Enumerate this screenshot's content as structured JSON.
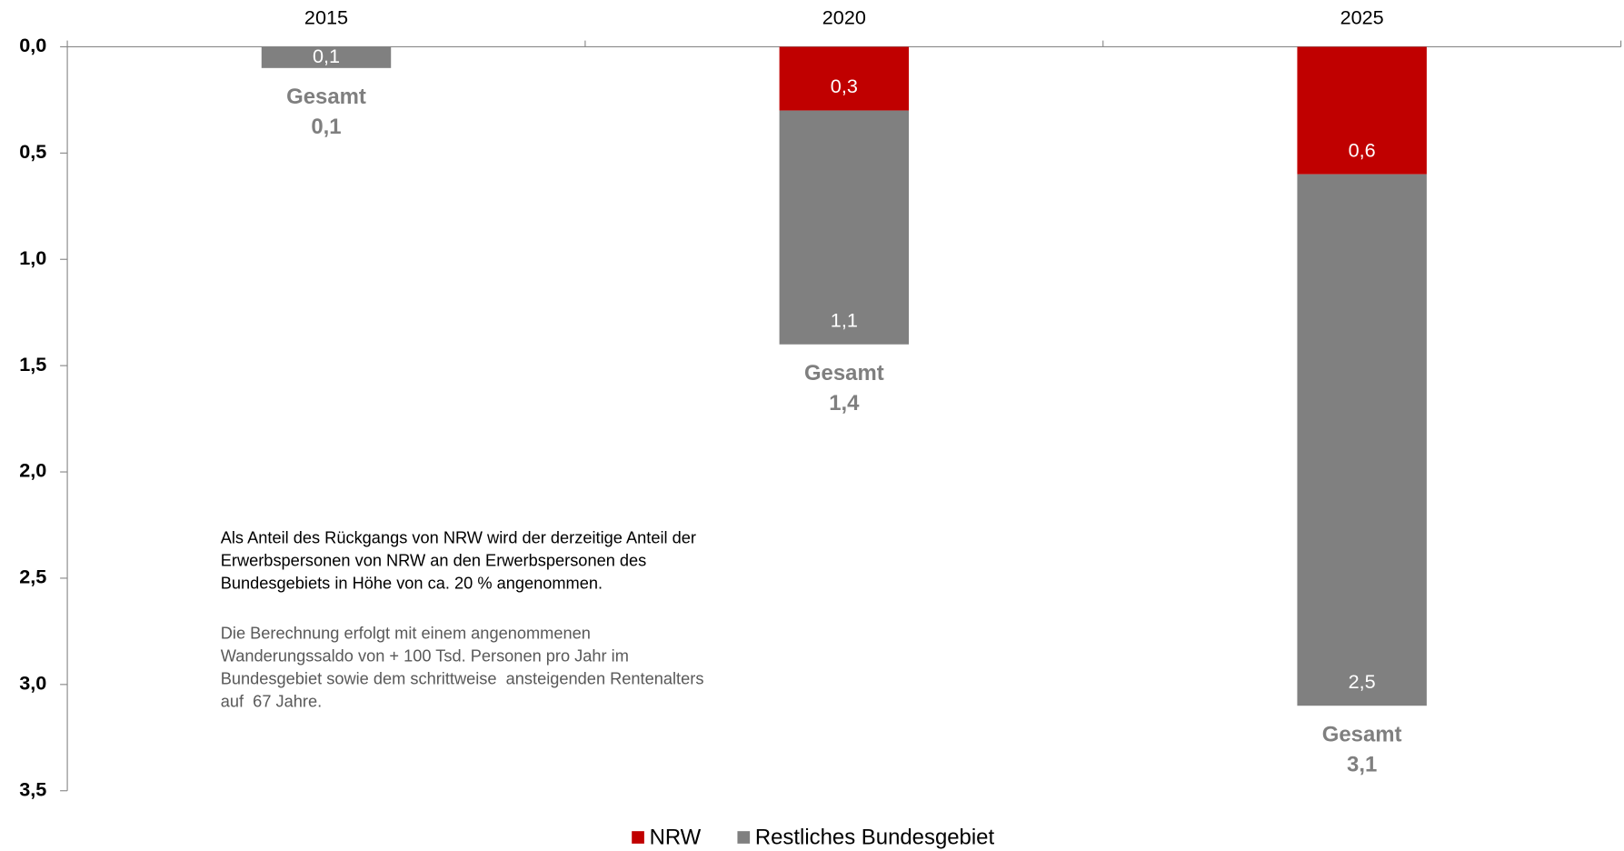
{
  "chart_data": {
    "type": "stacked_bar",
    "categories": [
      "2015",
      "2020",
      "2025"
    ],
    "series": [
      {
        "name": "NRW",
        "color": "#c00000",
        "values": [
          0,
          0.3,
          0.6
        ],
        "value_labels": [
          null,
          "0,3",
          "0,6"
        ]
      },
      {
        "name": "Restliches Bundesgebiet",
        "color": "#808080",
        "values": [
          0.1,
          1.1,
          2.5
        ],
        "value_labels": [
          "0,1",
          "1,1",
          "2,5"
        ]
      }
    ],
    "totals": {
      "label": "Gesamt",
      "values": [
        0.1,
        1.4,
        3.1
      ],
      "value_labels": [
        "0,1",
        "1,4",
        "3,1"
      ]
    },
    "ylim": [
      0,
      3.5
    ],
    "y_inverted": true,
    "yticks": [
      {
        "value": 0,
        "label": "0,0"
      },
      {
        "value": 0.5,
        "label": "0,5"
      },
      {
        "value": 1,
        "label": "1,0"
      },
      {
        "value": 1.5,
        "label": "1,5"
      },
      {
        "value": 2,
        "label": "2,0"
      },
      {
        "value": 2.5,
        "label": "2,5"
      },
      {
        "value": 3,
        "label": "3,0"
      },
      {
        "value": 3.5,
        "label": "3,5"
      }
    ],
    "grid": false,
    "legend": "bottom",
    "annotations": [
      [
        "Als Anteil des Rückgangs von NRW wird der derzeitige Anteil der",
        "Erwerbspersonen von NRW an den Erwerbspersonen des",
        "Bundesgebiets in Höhe von ca. 20 % angenommen."
      ],
      [
        "Die Berechnung erfolgt mit einem angenommenen",
        "Wanderungssaldo von + 100 Tsd. Personen pro Jahr im",
        "Bundesgebiet sowie dem schrittweise  ansteigenden Rentenalters",
        "auf  67 Jahre."
      ]
    ]
  }
}
